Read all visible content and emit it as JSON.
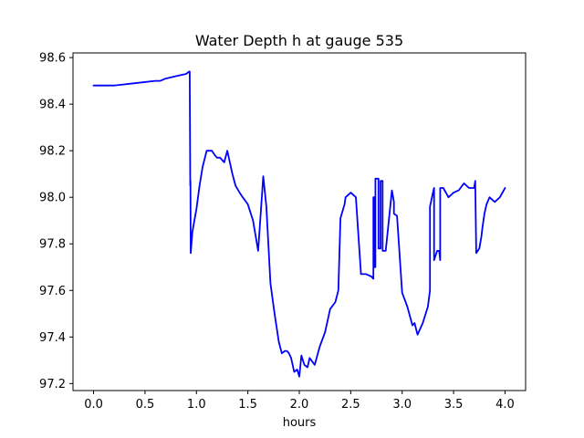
{
  "chart_data": {
    "type": "line",
    "title": "Water Depth h at gauge 535",
    "xlabel": "hours",
    "ylabel": "",
    "xlim": [
      -0.2,
      4.2
    ],
    "ylim": [
      97.17,
      98.62
    ],
    "xticks": [
      0.0,
      0.5,
      1.0,
      1.5,
      2.0,
      2.5,
      3.0,
      3.5,
      4.0
    ],
    "xtick_labels": [
      "0.0",
      "0.5",
      "1.0",
      "1.5",
      "2.0",
      "2.5",
      "3.0",
      "3.5",
      "4.0"
    ],
    "yticks": [
      97.2,
      97.4,
      97.6,
      97.8,
      98.0,
      98.2,
      98.4,
      98.6
    ],
    "ytick_labels": [
      "97.2",
      "97.4",
      "97.6",
      "97.8",
      "98.0",
      "98.2",
      "98.4",
      "98.6"
    ],
    "grid": false,
    "colors": {
      "line": "#0000ff",
      "axes": "#000000",
      "background": "#ffffff"
    },
    "series": [
      {
        "color": "#0000ff",
        "x": [
          0.0,
          0.2,
          0.4,
          0.6,
          0.65,
          0.7,
          0.8,
          0.9,
          0.93,
          0.935,
          0.94,
          0.942,
          0.944,
          0.95,
          0.96,
          0.98,
          1.0,
          1.03,
          1.06,
          1.1,
          1.15,
          1.18,
          1.2,
          1.23,
          1.27,
          1.3,
          1.35,
          1.38,
          1.42,
          1.45,
          1.5,
          1.55,
          1.6,
          1.65,
          1.68,
          1.68,
          1.72,
          1.72,
          1.76,
          1.8,
          1.83,
          1.86,
          1.88,
          1.9,
          1.92,
          1.95,
          1.98,
          2.0,
          2.02,
          2.05,
          2.08,
          2.1,
          2.15,
          2.2,
          2.25,
          2.3,
          2.35,
          2.38,
          2.4,
          2.44,
          2.45,
          2.45,
          2.5,
          2.55,
          2.6,
          2.6,
          2.65,
          2.7,
          2.72,
          2.72,
          2.73,
          2.73,
          2.74,
          2.74,
          2.77,
          2.77,
          2.79,
          2.79,
          2.81,
          2.81,
          2.84,
          2.9,
          2.92,
          2.92,
          2.95,
          3.0,
          3.05,
          3.1,
          3.12,
          3.15,
          3.2,
          3.25,
          3.27,
          3.27,
          3.3,
          3.3,
          3.31,
          3.31,
          3.34,
          3.36,
          3.37,
          3.37,
          3.4,
          3.45,
          3.5,
          3.55,
          3.6,
          3.65,
          3.7,
          3.71,
          3.71,
          3.72,
          3.75,
          3.77,
          3.78,
          3.8,
          3.82,
          3.85,
          3.9,
          3.95,
          4.0
        ],
        "y": [
          98.48,
          98.48,
          98.49,
          98.5,
          98.5,
          98.51,
          98.52,
          98.53,
          98.54,
          98.54,
          98.05,
          98.07,
          97.76,
          97.79,
          97.85,
          97.9,
          97.95,
          98.05,
          98.13,
          98.2,
          98.2,
          98.18,
          98.17,
          98.17,
          98.15,
          98.2,
          98.1,
          98.05,
          98.02,
          98.0,
          97.97,
          97.9,
          97.77,
          98.09,
          97.96,
          97.96,
          97.63,
          97.63,
          97.5,
          97.38,
          97.33,
          97.34,
          97.34,
          97.33,
          97.31,
          97.25,
          97.26,
          97.23,
          97.32,
          97.28,
          97.27,
          97.31,
          97.28,
          97.36,
          97.42,
          97.52,
          97.55,
          97.6,
          97.91,
          97.97,
          98.0,
          98.0,
          98.02,
          98.0,
          97.67,
          97.67,
          97.67,
          97.66,
          97.65,
          98.0,
          98.0,
          97.7,
          97.7,
          98.08,
          98.08,
          97.78,
          97.78,
          98.07,
          98.07,
          97.77,
          97.77,
          98.03,
          97.98,
          97.93,
          97.92,
          97.59,
          97.53,
          97.45,
          97.46,
          97.41,
          97.46,
          97.53,
          97.6,
          97.96,
          98.02,
          98.02,
          98.04,
          97.73,
          97.77,
          97.77,
          97.73,
          98.04,
          98.04,
          98.0,
          98.02,
          98.03,
          98.06,
          98.04,
          98.04,
          98.07,
          98.07,
          97.76,
          97.78,
          97.83,
          97.87,
          97.93,
          97.97,
          98.0,
          97.98,
          98.0,
          98.04
        ]
      }
    ]
  }
}
